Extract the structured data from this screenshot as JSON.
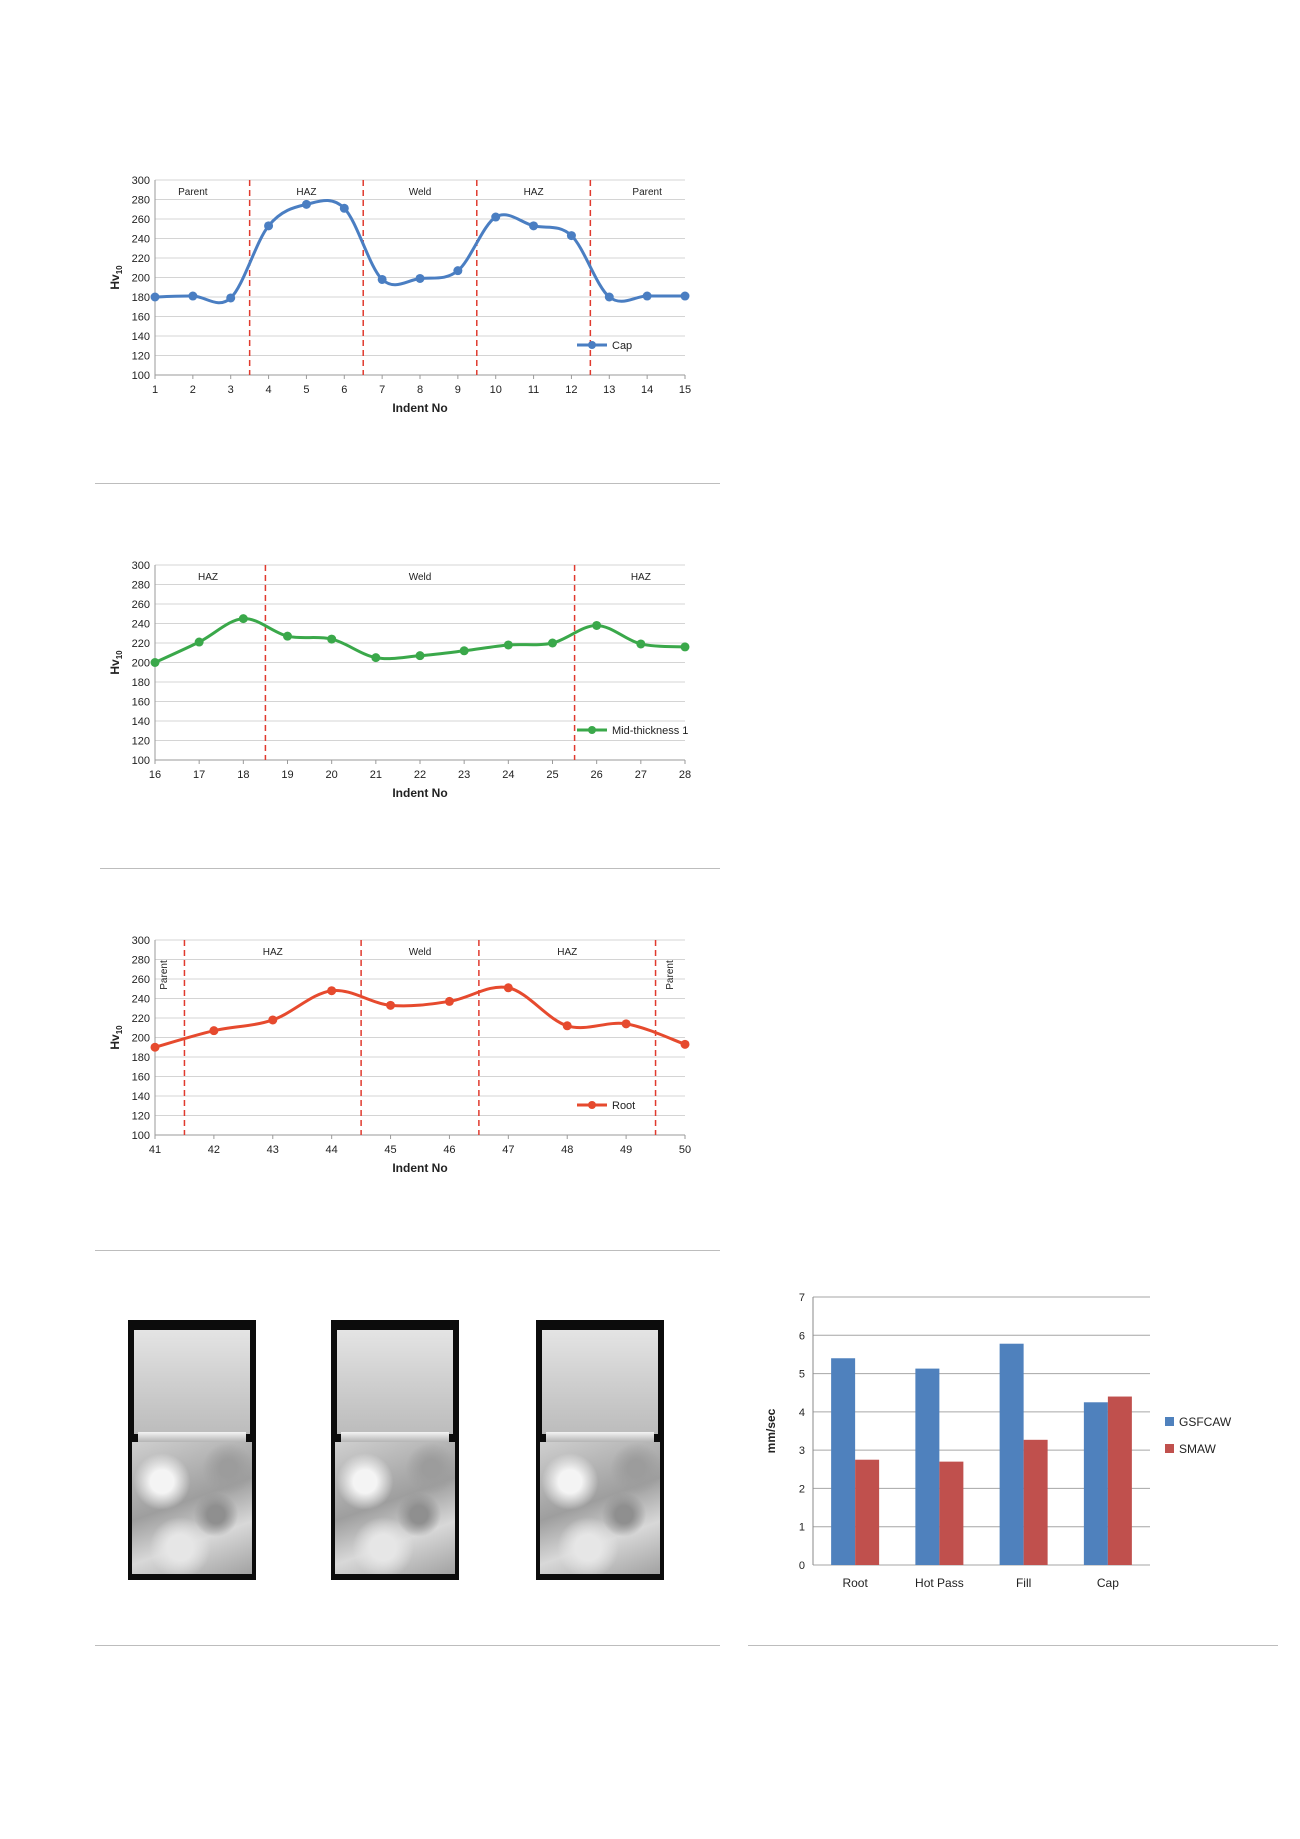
{
  "chart_data": [
    {
      "type": "line",
      "xlabel": "Indent No",
      "ylabel": "Hv10",
      "ylabel_main": "Hv",
      "ylabel_sub": "10",
      "ylim": [
        100,
        300
      ],
      "ytick_step": 20,
      "grid": true,
      "legend_position": "bottom-right",
      "x": [
        1,
        2,
        3,
        4,
        5,
        6,
        7,
        8,
        9,
        10,
        11,
        12,
        13,
        14,
        15
      ],
      "series": [
        {
          "name": "Cap",
          "color": "#4a7ec2",
          "values": [
            180,
            181,
            179,
            253,
            275,
            271,
            198,
            199,
            207,
            262,
            253,
            243,
            180,
            181,
            181
          ]
        }
      ],
      "divisions": [
        3.5,
        6.5,
        9.5,
        12.5
      ],
      "zones": [
        {
          "label": "Parent",
          "x": 2
        },
        {
          "label": "HAZ",
          "x": 5
        },
        {
          "label": "Weld",
          "x": 8
        },
        {
          "label": "HAZ",
          "x": 11
        },
        {
          "label": "Parent",
          "x": 14
        }
      ]
    },
    {
      "type": "line",
      "xlabel": "Indent No",
      "ylabel": "Hv10",
      "ylabel_main": "Hv",
      "ylabel_sub": "10",
      "ylim": [
        100,
        300
      ],
      "ytick_step": 20,
      "grid": true,
      "legend_position": "bottom-right",
      "x": [
        16,
        17,
        18,
        19,
        20,
        21,
        22,
        23,
        24,
        25,
        26,
        27,
        28
      ],
      "series": [
        {
          "name": "Mid-thickness 1",
          "color": "#3aa84a",
          "values": [
            200,
            221,
            245,
            227,
            224,
            205,
            207,
            212,
            218,
            220,
            238,
            219,
            216
          ]
        }
      ],
      "divisions": [
        18.5,
        25.5
      ],
      "zones": [
        {
          "label": "HAZ",
          "x": 17.2
        },
        {
          "label": "Weld",
          "x": 22
        },
        {
          "label": "HAZ",
          "x": 27
        }
      ]
    },
    {
      "type": "line",
      "xlabel": "Indent No",
      "ylabel": "Hv10",
      "ylabel_main": "Hv",
      "ylabel_sub": "10",
      "ylim": [
        100,
        300
      ],
      "ytick_step": 20,
      "grid": true,
      "legend_position": "bottom-right",
      "x": [
        41,
        42,
        43,
        44,
        45,
        46,
        47,
        48,
        49,
        50
      ],
      "series": [
        {
          "name": "Root",
          "color": "#e64a2e",
          "values": [
            190,
            207,
            218,
            248,
            233,
            237,
            251,
            212,
            214,
            193
          ]
        }
      ],
      "divisions": [
        41.5,
        44.5,
        46.5,
        49.5
      ],
      "zones": [
        {
          "label": "Parent",
          "x": 41.2,
          "vertical": true
        },
        {
          "label": "HAZ",
          "x": 43
        },
        {
          "label": "Weld",
          "x": 45.5
        },
        {
          "label": "HAZ",
          "x": 48
        },
        {
          "label": "Parent",
          "x": 49.8,
          "vertical": true
        }
      ]
    },
    {
      "type": "bar",
      "xlabel": "",
      "ylabel": "mm/sec",
      "ylim": [
        0,
        7
      ],
      "ytick_step": 1,
      "grid": true,
      "legend_position": "right",
      "categories": [
        "Root",
        "Hot Pass",
        "Fill",
        "Cap"
      ],
      "series": [
        {
          "name": "GSFCAW",
          "color": "#4f81bd",
          "values": [
            5.4,
            5.13,
            5.78,
            4.25
          ]
        },
        {
          "name": "SMAW",
          "color": "#c0504d",
          "values": [
            2.75,
            2.7,
            3.27,
            4.4
          ]
        }
      ]
    }
  ]
}
